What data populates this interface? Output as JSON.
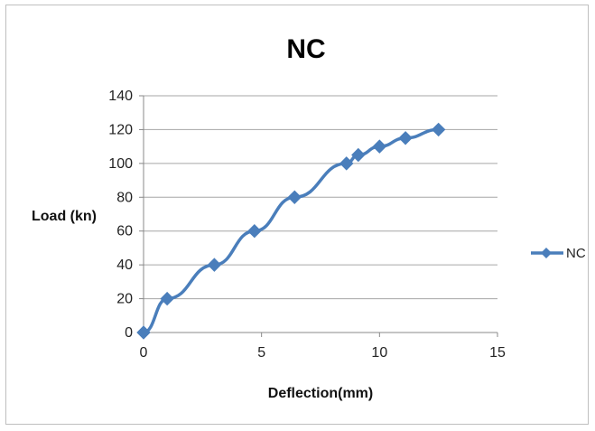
{
  "chart_data": {
    "type": "line",
    "title": "NC",
    "xlabel": "Deflection(mm)",
    "ylabel": "Load (kn)",
    "xlim": [
      0,
      15
    ],
    "ylim": [
      0,
      140
    ],
    "xticks": [
      0,
      5,
      10,
      15
    ],
    "yticks": [
      0,
      20,
      40,
      60,
      80,
      100,
      120,
      140
    ],
    "grid": "horizontal",
    "legend_position": "right",
    "series": [
      {
        "name": "NC",
        "color": "#4a7ebb",
        "marker": "diamond",
        "x": [
          0,
          1.0,
          3.0,
          4.7,
          6.4,
          8.6,
          9.1,
          10.0,
          11.1,
          12.5
        ],
        "y": [
          0,
          20,
          40,
          60,
          80,
          100,
          105,
          110,
          115,
          120
        ]
      }
    ]
  }
}
